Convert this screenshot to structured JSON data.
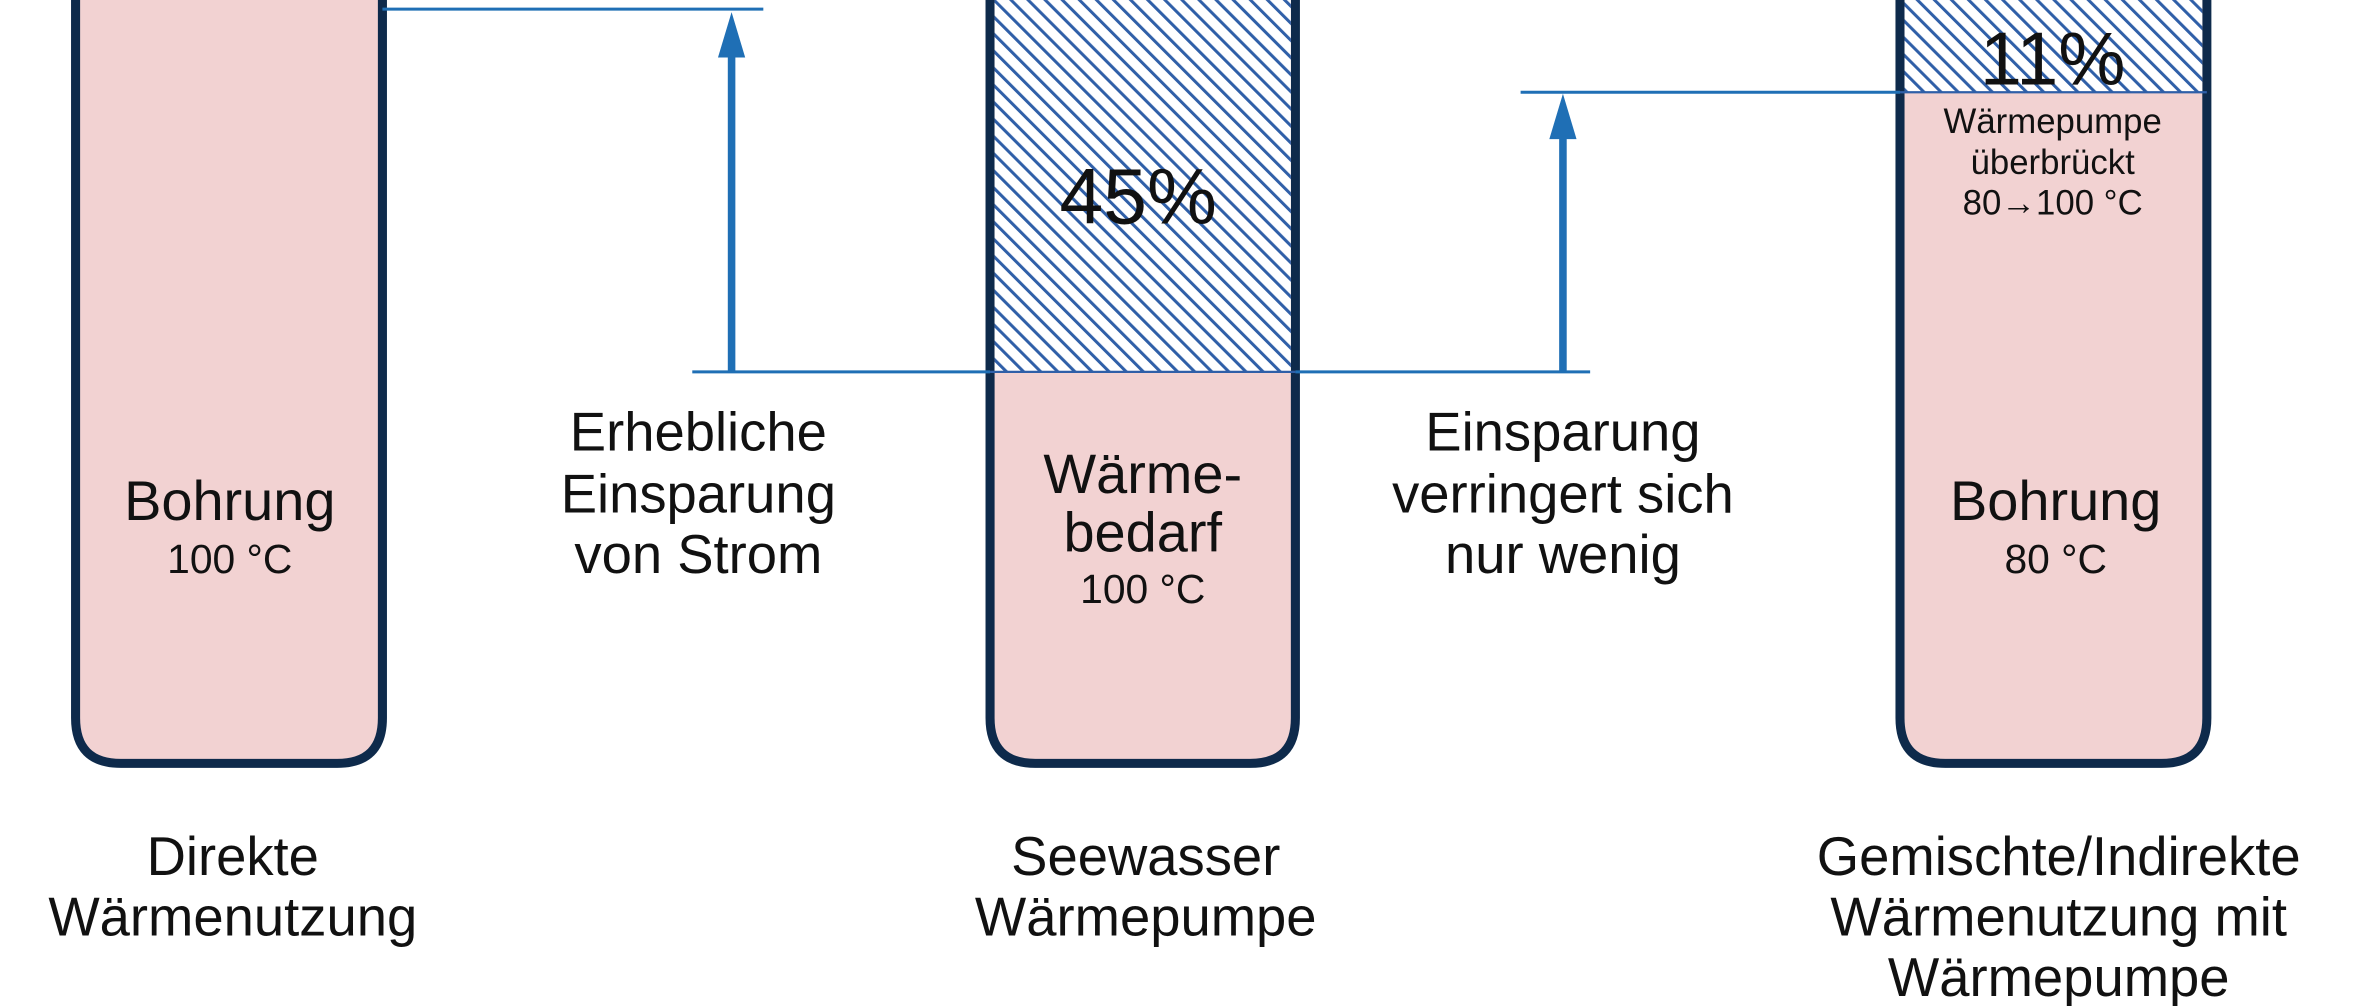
{
  "columns": [
    {
      "source": "Bohrung",
      "temperature": "100 °C",
      "caption": [
        "Direkte",
        "Wärmenutzung"
      ]
    },
    {
      "share": "45%",
      "demand": [
        "Wärme-",
        "bedarf"
      ],
      "temperature": "100 °C",
      "caption": [
        "Seewasser",
        "Wärmepumpe"
      ]
    },
    {
      "share": "11%",
      "note": [
        "Wärmepumpe",
        "überbrückt",
        "80→100 °C"
      ],
      "source": "Bohrung",
      "temperature": "80 °C",
      "caption": [
        "Gemischte/Indirekte",
        "Wärmenutzung mit",
        "Wärmepumpe"
      ]
    }
  ],
  "comparisons": [
    {
      "label": [
        "Erhebliche",
        "Einsparung",
        "von Strom"
      ]
    },
    {
      "label": [
        "Einsparung",
        "verringert sich",
        "nur wenig"
      ]
    }
  ]
}
